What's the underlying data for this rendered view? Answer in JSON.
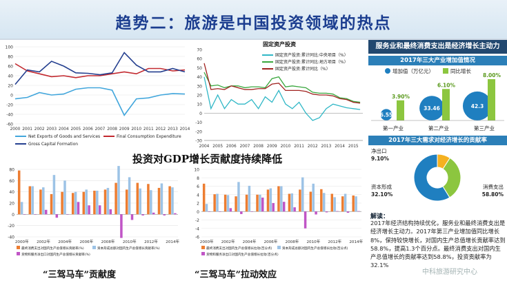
{
  "page": {
    "title": "趋势二：旅游是中国投资领域的热点",
    "caption_gdp": "投资对GDP增长贡献度持续降低",
    "caption_contribution": "“三驾马车”贡献度",
    "caption_pull": "“三驾马车”拉动效应",
    "watermark": "中科旅游研究中心"
  },
  "chart_data": [
    {
      "id": "gdp_components",
      "type": "line",
      "title": "",
      "ylim": [
        -60,
        100
      ],
      "yticks": [
        "100",
        "80",
        "60",
        "40",
        "20",
        "0",
        "-20",
        "-40",
        "-60"
      ],
      "x": [
        "2000",
        "2001",
        "2002",
        "2003",
        "2004",
        "2005",
        "2006",
        "2007",
        "2008",
        "2009",
        "2010",
        "2011",
        "2012",
        "2013",
        "2014"
      ],
      "series": [
        {
          "name": "Net Exports of Goods and Services",
          "color": "#41a6dc",
          "values": [
            -8,
            -5,
            5,
            0,
            2,
            12,
            15,
            15,
            10,
            -42,
            -8,
            -6,
            0,
            3,
            2
          ]
        },
        {
          "name": "Final Consumption Expenditure",
          "color": "#c2282e",
          "values": [
            65,
            50,
            44,
            38,
            40,
            36,
            40,
            40,
            44,
            48,
            44,
            55,
            55,
            50,
            52
          ]
        },
        {
          "name": "Gross Capital Formation",
          "color": "#243f8f",
          "values": [
            22,
            52,
            48,
            70,
            60,
            46,
            45,
            42,
            46,
            88,
            62,
            48,
            48,
            55,
            48
          ]
        }
      ]
    },
    {
      "id": "fixed_asset_investment",
      "type": "line",
      "title": "固定资产投资",
      "ylim": [
        -30,
        70
      ],
      "yticks": [
        "70",
        "60",
        "50",
        "40",
        "30",
        "20",
        "10",
        "0",
        "-10",
        "-20",
        "-30"
      ],
      "xticks": [
        "2004",
        "2005",
        "2006",
        "2007",
        "2008",
        "2009",
        "2010",
        "2011",
        "2012",
        "2013",
        "2014",
        "2015"
      ],
      "x": [
        2004,
        2004.5,
        2005,
        2005.5,
        2006,
        2006.5,
        2007,
        2007.5,
        2008,
        2008.5,
        2009,
        2009.5,
        2010,
        2010.5,
        2011,
        2011.5,
        2012,
        2012.5,
        2013,
        2013.5,
        2014,
        2014.5,
        2015,
        2015.5
      ],
      "series": [
        {
          "name": "固定资产投资:累计同比:中央项目（%）",
          "color": "#2fb7c6",
          "values": [
            40,
            5,
            20,
            5,
            15,
            10,
            10,
            15,
            5,
            18,
            12,
            25,
            10,
            5,
            12,
            0,
            -8,
            -5,
            5,
            10,
            8,
            6,
            5,
            4
          ]
        },
        {
          "name": "固定资产投资:累计同比:地方项目（%）",
          "color": "#38a63c",
          "values": [
            45,
            30,
            31,
            28,
            30,
            30,
            28,
            29,
            29,
            28,
            38,
            40,
            29,
            30,
            29,
            28,
            23,
            22,
            22,
            21,
            17,
            16,
            13,
            12
          ]
        },
        {
          "name": "固定资产投资:累计同比（%）",
          "color": "#a0221f",
          "values": [
            55,
            26,
            27,
            26,
            30,
            28,
            26,
            26,
            27,
            27,
            32,
            33,
            25,
            25,
            25,
            24,
            21,
            20,
            20,
            19,
            16,
            15,
            12,
            11
          ]
        }
      ]
    },
    {
      "id": "contribution",
      "type": "bar",
      "title": "",
      "ylim": [
        -40,
        80
      ],
      "yticks": [
        "80",
        "60",
        "40",
        "20",
        "0",
        "-20",
        "-40"
      ],
      "xticks": [
        "2000年",
        "2002年",
        "2004年",
        "2006年",
        "2008年",
        "2010年",
        "2012年",
        "2014年"
      ],
      "categories": [
        "2000",
        "2001",
        "2002",
        "2003",
        "2004",
        "2005",
        "2006",
        "2007",
        "2008",
        "2009",
        "2010",
        "2011",
        "2012",
        "2013",
        "2014"
      ],
      "series": [
        {
          "name": "最终消费支出对国内生产总值增长贡献率(%)",
          "color": "#ed7d31",
          "values": [
            78,
            50,
            44,
            36,
            40,
            38,
            40,
            42,
            44,
            56,
            44,
            56,
            54,
            47,
            50
          ]
        },
        {
          "name": "资本形成总额对国内生产总值增长贡献率(%)",
          "color": "#9dc3e6",
          "values": [
            22,
            50,
            48,
            70,
            60,
            40,
            44,
            42,
            47,
            86,
            66,
            46,
            43,
            55,
            48
          ]
        },
        {
          "name": "货物和服务净出口对国内生产总值增长贡献率(%)",
          "color": "#c055c6",
          "values": [
            0,
            0,
            8,
            -6,
            0,
            22,
            16,
            16,
            9,
            -42,
            -10,
            -2,
            3,
            -2,
            2
          ]
        }
      ]
    },
    {
      "id": "pull_effect",
      "type": "bar",
      "title": "",
      "ylim": [
        -6,
        10
      ],
      "yticks": [
        "10",
        "8",
        "6",
        "4",
        "2",
        "0",
        "-2",
        "-4",
        "-6"
      ],
      "xticks": [
        "2000年",
        "2002年",
        "2004年",
        "2006年",
        "2008年",
        "2010年",
        "2012年",
        "2014年"
      ],
      "categories": [
        "2000",
        "2001",
        "2002",
        "2003",
        "2004",
        "2005",
        "2006",
        "2007",
        "2008",
        "2009",
        "2010",
        "2011",
        "2012",
        "2013",
        "2014"
      ],
      "series": [
        {
          "name": "最终消费支出对国内生产总值增长拉动(百分点)",
          "color": "#ed7d31",
          "values": [
            6.6,
            4.1,
            4.0,
            3.6,
            4.0,
            4.0,
            5.2,
            6.0,
            4.2,
            5.2,
            4.7,
            5.3,
            4.2,
            3.6,
            3.8
          ]
        },
        {
          "name": "资本形成总额对国内生产总值增长拉动(百分点)",
          "color": "#9dc3e6",
          "values": [
            1.8,
            4.2,
            3.9,
            7.0,
            6.1,
            4.0,
            5.5,
            6.0,
            4.3,
            8.1,
            6.6,
            4.4,
            3.4,
            4.2,
            3.6
          ]
        },
        {
          "name": "货物和服务净出口对国内生产总值增长拉动(百分点)",
          "color": "#c055c6",
          "values": [
            0.0,
            -0.0,
            0.8,
            -0.6,
            -0.0,
            3.3,
            2.0,
            2.3,
            1.0,
            -4.0,
            -0.7,
            -0.2,
            0.1,
            -0.3,
            0.1
          ]
        }
      ]
    },
    {
      "id": "industry_growth",
      "type": "bar",
      "title": "2017年三大产业增加值情况",
      "legend": [
        "增加值（万亿元）",
        "同比增长"
      ],
      "categories": [
        "第一产业",
        "第二产业",
        "第三产业"
      ],
      "series": [
        {
          "name": "增加值（万亿元）",
          "color": "#1f7fc0",
          "values": [
            6.55,
            33.46,
            42.3
          ],
          "labels": [
            "6.55",
            "33.46",
            "42.3"
          ]
        },
        {
          "name": "同比增长",
          "color": "#8cc63f",
          "values": [
            3.9,
            6.1,
            8.0
          ],
          "labels": [
            "3.90%",
            "6.10%",
            "8.00%"
          ]
        }
      ]
    },
    {
      "id": "consumption_contribution",
      "type": "pie",
      "title": "2017年三大需求对经济增长的贡献率",
      "labels": [
        "净出口",
        "资本形成",
        "消费支出"
      ],
      "values": [
        9.1,
        32.1,
        58.8
      ],
      "value_labels": [
        "9.10%",
        "32.10%",
        "58.80%"
      ],
      "colors": [
        "#f5b120",
        "#8cc63f",
        "#1f7fc0"
      ]
    }
  ],
  "right_panel": {
    "header": "服务业和最终消费支出是经济增长主动力",
    "note_title": "解读：",
    "note_body": "2017年经济结构持续优化，服务业和最终消费支出是经济增长主动力。2017年第三产业增加值同比增长8%，保持较快增长，对国内生产总值增长贡献率达到58.8%，提高1.3个百分点。最终消费支出对国内生产总值增长的贡献率达到58.8%，投资贡献率为32.1%"
  }
}
